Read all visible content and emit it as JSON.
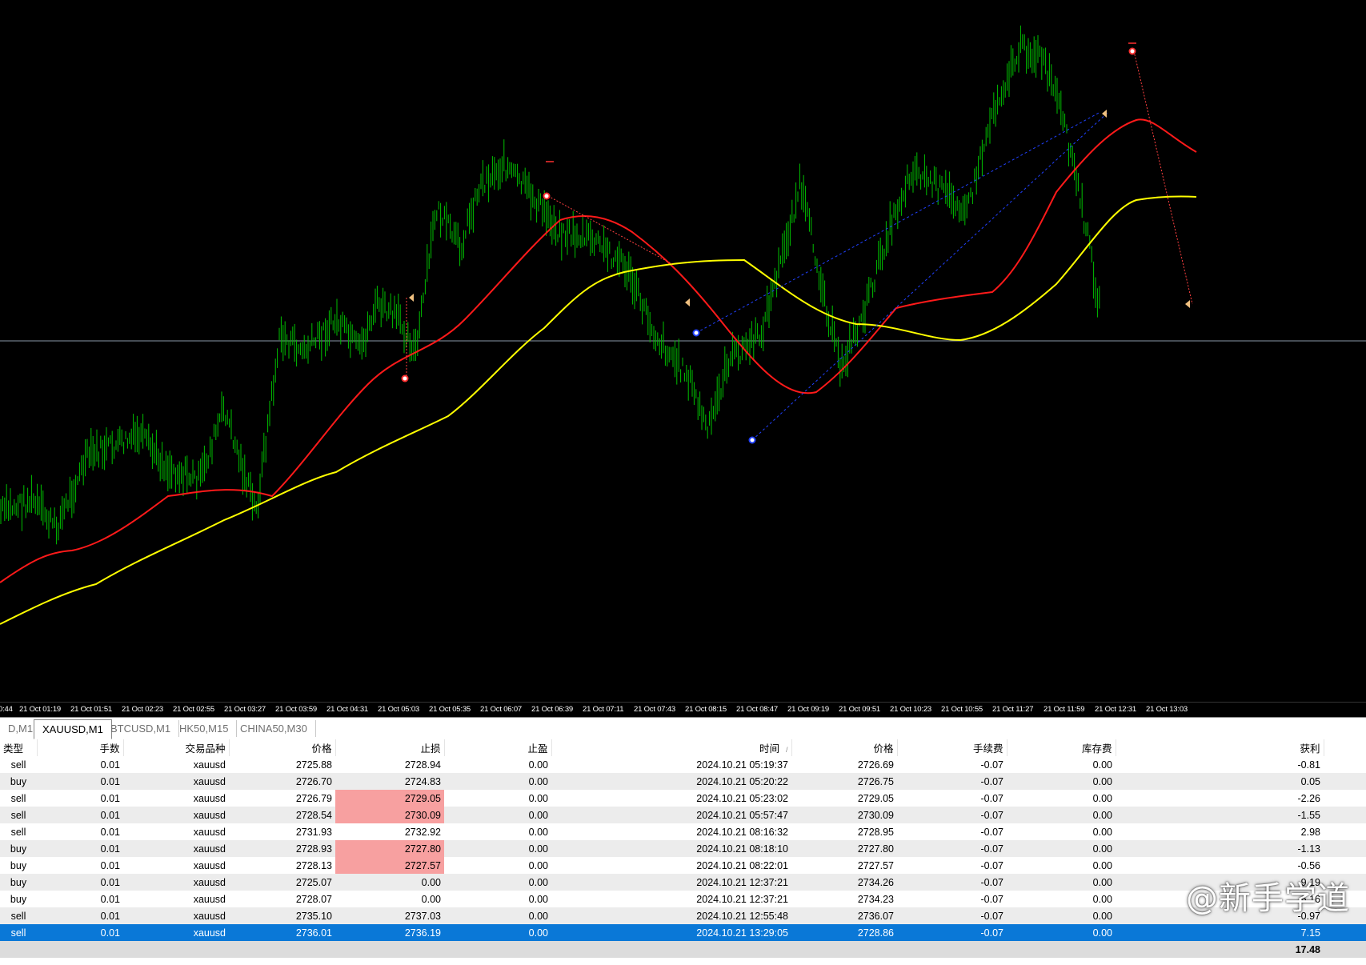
{
  "chart": {
    "symbol": "XAUUSD",
    "timeframe": "M1",
    "background": "#000000",
    "bar_color": "#00c000",
    "ma_fast_color": "#ff1a1a",
    "ma_slow_color": "#ffff00",
    "time_labels": [
      "0:44",
      "21 Oct 01:19",
      "21 Oct 01:51",
      "21 Oct 02:23",
      "21 Oct 02:55",
      "21 Oct 03:27",
      "21 Oct 03:59",
      "21 Oct 04:31",
      "21 Oct 05:03",
      "21 Oct 05:35",
      "21 Oct 06:07",
      "21 Oct 06:39",
      "21 Oct 07:11",
      "21 Oct 07:43",
      "21 Oct 08:15",
      "21 Oct 08:47",
      "21 Oct 09:19",
      "21 Oct 09:51",
      "21 Oct 10:23",
      "21 Oct 10:55",
      "21 Oct 11:27",
      "21 Oct 11:59",
      "21 Oct 12:31",
      "21 Oct 13:03"
    ]
  },
  "tabs": [
    {
      "label": "D,M1",
      "active": false
    },
    {
      "label": "XAUUSD,M1",
      "active": true
    },
    {
      "label": "BTCUSD,M1",
      "active": false
    },
    {
      "label": "HK50,M15",
      "active": false
    },
    {
      "label": "CHINA50,M30",
      "active": false
    }
  ],
  "table": {
    "headers": {
      "type": "类型",
      "lots": "手数",
      "symbol": "交易品种",
      "open_price": "价格",
      "sl": "止损",
      "tp": "止盈",
      "time": "时间",
      "sort_indicator": "/",
      "close_price": "价格",
      "commission": "手续费",
      "swap": "库存费",
      "profit": "获利"
    },
    "rows": [
      {
        "type": "sell",
        "lots": "0.01",
        "symbol": "xauusd",
        "open_price": "2725.88",
        "sl": "2728.94",
        "sl_hit": false,
        "tp": "0.00",
        "time": "2024.10.21 05:19:37",
        "close_price": "2726.69",
        "commission": "-0.07",
        "swap": "0.00",
        "profit": "-0.81"
      },
      {
        "type": "buy",
        "lots": "0.01",
        "symbol": "xauusd",
        "open_price": "2726.70",
        "sl": "2724.83",
        "sl_hit": false,
        "tp": "0.00",
        "time": "2024.10.21 05:20:22",
        "close_price": "2726.75",
        "commission": "-0.07",
        "swap": "0.00",
        "profit": "0.05"
      },
      {
        "type": "sell",
        "lots": "0.01",
        "symbol": "xauusd",
        "open_price": "2726.79",
        "sl": "2729.05",
        "sl_hit": true,
        "tp": "0.00",
        "time": "2024.10.21 05:23:02",
        "close_price": "2729.05",
        "commission": "-0.07",
        "swap": "0.00",
        "profit": "-2.26"
      },
      {
        "type": "sell",
        "lots": "0.01",
        "symbol": "xauusd",
        "open_price": "2728.54",
        "sl": "2730.09",
        "sl_hit": true,
        "tp": "0.00",
        "time": "2024.10.21 05:57:47",
        "close_price": "2730.09",
        "commission": "-0.07",
        "swap": "0.00",
        "profit": "-1.55"
      },
      {
        "type": "sell",
        "lots": "0.01",
        "symbol": "xauusd",
        "open_price": "2731.93",
        "sl": "2732.92",
        "sl_hit": false,
        "tp": "0.00",
        "time": "2024.10.21 08:16:32",
        "close_price": "2728.95",
        "commission": "-0.07",
        "swap": "0.00",
        "profit": "2.98"
      },
      {
        "type": "buy",
        "lots": "0.01",
        "symbol": "xauusd",
        "open_price": "2728.93",
        "sl": "2727.80",
        "sl_hit": true,
        "tp": "0.00",
        "time": "2024.10.21 08:18:10",
        "close_price": "2727.80",
        "commission": "-0.07",
        "swap": "0.00",
        "profit": "-1.13"
      },
      {
        "type": "buy",
        "lots": "0.01",
        "symbol": "xauusd",
        "open_price": "2728.13",
        "sl": "2727.57",
        "sl_hit": true,
        "tp": "0.00",
        "time": "2024.10.21 08:22:01",
        "close_price": "2727.57",
        "commission": "-0.07",
        "swap": "0.00",
        "profit": "-0.56"
      },
      {
        "type": "buy",
        "lots": "0.01",
        "symbol": "xauusd",
        "open_price": "2725.07",
        "sl": "0.00",
        "sl_hit": false,
        "tp": "0.00",
        "time": "2024.10.21 12:37:21",
        "close_price": "2734.26",
        "commission": "-0.07",
        "swap": "0.00",
        "profit": "9.19"
      },
      {
        "type": "buy",
        "lots": "0.01",
        "symbol": "xauusd",
        "open_price": "2728.07",
        "sl": "0.00",
        "sl_hit": false,
        "tp": "0.00",
        "time": "2024.10.21 12:37:21",
        "close_price": "2734.23",
        "commission": "-0.07",
        "swap": "0.00",
        "profit": "6.16"
      },
      {
        "type": "sell",
        "lots": "0.01",
        "symbol": "xauusd",
        "open_price": "2735.10",
        "sl": "2737.03",
        "sl_hit": false,
        "tp": "0.00",
        "time": "2024.10.21 12:55:48",
        "close_price": "2736.07",
        "commission": "-0.07",
        "swap": "0.00",
        "profit": "-0.97"
      },
      {
        "type": "sell",
        "lots": "0.01",
        "symbol": "xauusd",
        "open_price": "2736.01",
        "sl": "2736.19",
        "sl_hit": false,
        "tp": "0.00",
        "time": "2024.10.21 13:29:05",
        "close_price": "2728.86",
        "commission": "-0.07",
        "swap": "0.00",
        "profit": "7.15"
      }
    ],
    "selected_row": 10,
    "total_profit": "17.48",
    "sl_highlight_color": "#f7a0a0",
    "selection_color": "#0a78d7"
  },
  "watermark": "@新手学道"
}
